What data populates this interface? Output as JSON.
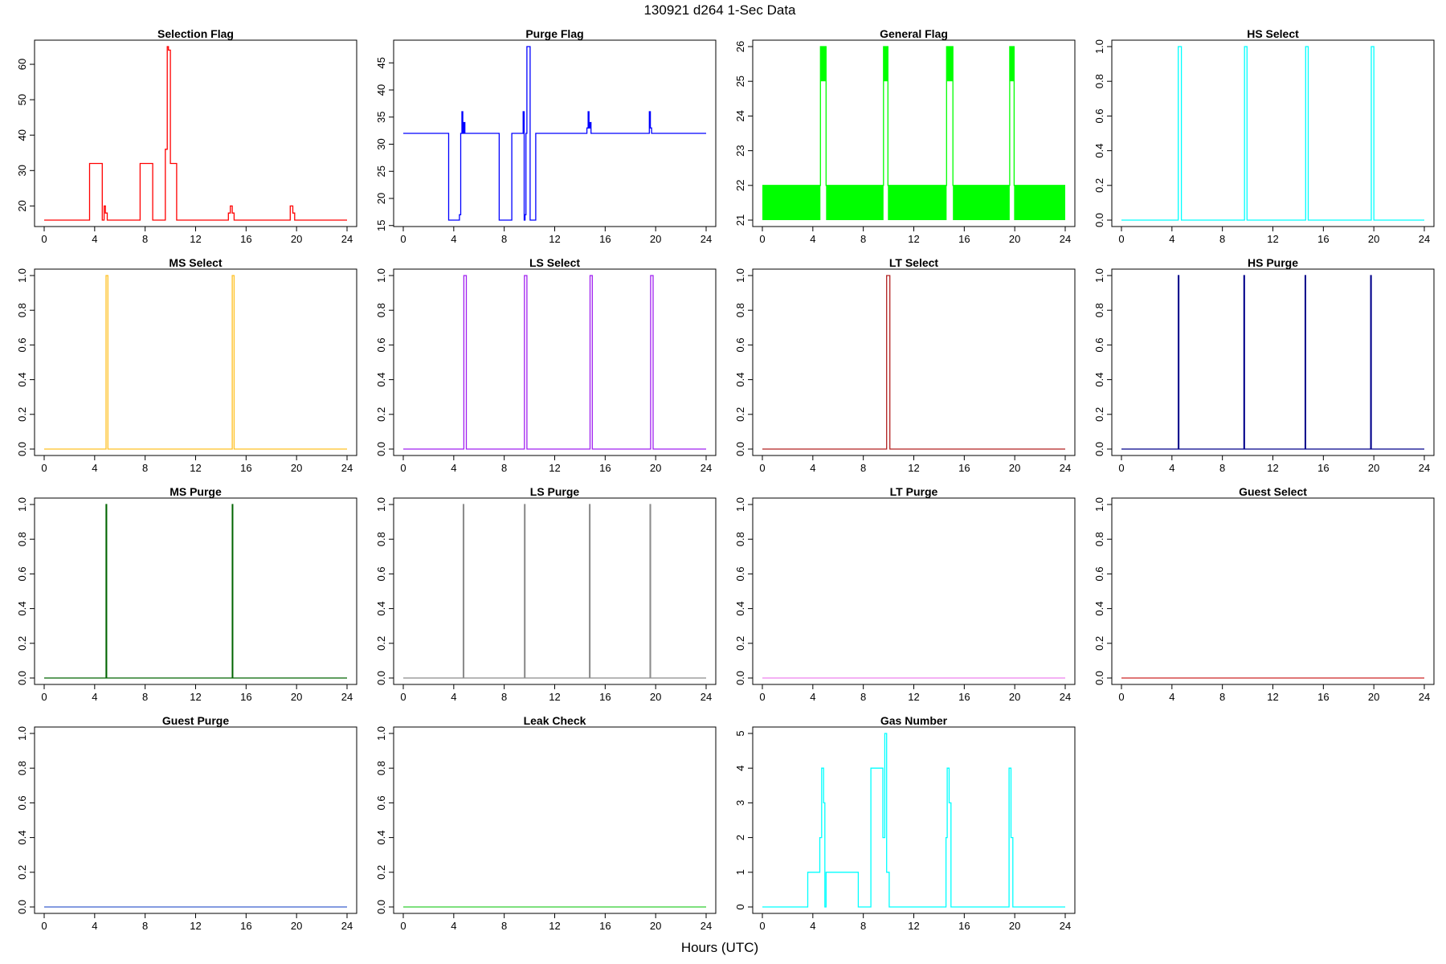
{
  "figure": {
    "title": "130921   d264   1-Sec Data",
    "xlabel": "Hours (UTC)"
  },
  "chart_data": [
    {
      "type": "line",
      "title": "Selection Flag",
      "color": "#ff0000",
      "xlim": [
        0,
        24
      ],
      "ylim": [
        16,
        65
      ],
      "xticks": [
        0,
        4,
        8,
        12,
        16,
        20,
        24
      ],
      "yticks": [
        20,
        30,
        40,
        50,
        60
      ],
      "ytick_labels": [
        "20",
        "30",
        "40",
        "50",
        "60"
      ],
      "x": [
        0,
        3.6,
        3.6,
        4.6,
        4.6,
        4.75,
        4.75,
        4.85,
        4.85,
        5.0,
        5.0,
        7.6,
        7.6,
        8.6,
        8.6,
        9.6,
        9.6,
        9.75,
        9.75,
        9.85,
        9.85,
        10.0,
        10.0,
        10.5,
        10.5,
        14.6,
        14.6,
        14.75,
        14.75,
        14.9,
        14.9,
        15.05,
        15.05,
        19.5,
        19.5,
        19.7,
        19.7,
        19.85,
        19.85,
        24
      ],
      "y": [
        16,
        16,
        32,
        32,
        16,
        16,
        20,
        20,
        18,
        18,
        16,
        16,
        32,
        32,
        16,
        16,
        36,
        36,
        65,
        65,
        64,
        64,
        32,
        32,
        16,
        16,
        18,
        18,
        20,
        20,
        18,
        18,
        16,
        16,
        20,
        20,
        18,
        18,
        16,
        16
      ]
    },
    {
      "type": "line",
      "title": "Purge Flag",
      "color": "#0000ff",
      "xlim": [
        0,
        24
      ],
      "ylim": [
        16,
        48
      ],
      "xticks": [
        0,
        4,
        8,
        12,
        16,
        20,
        24
      ],
      "yticks": [
        15,
        20,
        25,
        30,
        35,
        40,
        45
      ],
      "ytick_labels": [
        "15",
        "20",
        "25",
        "30",
        "35",
        "40",
        "45"
      ],
      "x": [
        0,
        3.6,
        3.6,
        4.45,
        4.45,
        4.55,
        4.55,
        4.65,
        4.65,
        4.72,
        4.72,
        4.8,
        4.8,
        4.88,
        4.88,
        7.6,
        7.6,
        8.6,
        8.6,
        9.5,
        9.5,
        9.58,
        9.58,
        9.65,
        9.65,
        9.72,
        9.72,
        9.8,
        9.8,
        10.05,
        10.05,
        10.5,
        10.5,
        14.55,
        14.55,
        14.65,
        14.65,
        14.72,
        14.72,
        14.8,
        14.8,
        14.88,
        14.88,
        19.5,
        19.5,
        19.58,
        19.58,
        19.68,
        19.68,
        24
      ],
      "y": [
        32,
        32,
        16,
        16,
        17,
        17,
        32,
        32,
        36,
        36,
        32,
        32,
        34,
        34,
        32,
        32,
        16,
        16,
        32,
        32,
        36,
        36,
        16,
        16,
        17,
        17,
        32,
        32,
        48,
        48,
        16,
        16,
        32,
        32,
        33,
        33,
        36,
        36,
        33,
        33,
        34,
        34,
        32,
        32,
        36,
        36,
        33,
        33,
        32,
        32
      ]
    },
    {
      "type": "line",
      "title": "General Flag",
      "color": "#00ff00",
      "xlim": [
        0,
        24
      ],
      "ylim": [
        21,
        26
      ],
      "xticks": [
        0,
        4,
        8,
        12,
        16,
        20,
        24
      ],
      "yticks": [
        21,
        22,
        23,
        24,
        25,
        26
      ],
      "ytick_labels": [
        "21",
        "22",
        "23",
        "24",
        "25",
        "26"
      ],
      "x": [
        0,
        4.6,
        4.6,
        5.05,
        5.05,
        9.6,
        9.6,
        9.95,
        9.95,
        14.6,
        14.6,
        15.1,
        15.1,
        19.6,
        19.6,
        19.95,
        19.95,
        24
      ],
      "y": [
        22,
        22,
        26,
        26,
        22,
        22,
        26,
        26,
        22,
        22,
        26,
        26,
        22,
        22,
        26,
        26,
        22,
        22
      ],
      "note": "rapid 21-22 oscillation rendered as solid fill; spikes oscillate 25-26"
    },
    {
      "type": "line",
      "title": "HS Select",
      "color": "#00ffff",
      "xlim": [
        0,
        24
      ],
      "ylim": [
        0,
        1
      ],
      "xticks": [
        0,
        4,
        8,
        12,
        16,
        20,
        24
      ],
      "yticks": [
        0.0,
        0.2,
        0.4,
        0.6,
        0.8,
        1.0
      ],
      "ytick_labels": [
        "0.0",
        "0.2",
        "0.4",
        "0.6",
        "0.8",
        "1.0"
      ],
      "x": [
        0,
        4.5,
        4.5,
        4.75,
        4.75,
        9.75,
        9.75,
        9.95,
        9.95,
        14.6,
        14.6,
        14.8,
        14.8,
        19.8,
        19.8,
        20.0,
        20.0,
        24
      ],
      "y": [
        0,
        0,
        1,
        1,
        0,
        0,
        1,
        1,
        0,
        0,
        1,
        1,
        0,
        0,
        1,
        1,
        0,
        0
      ]
    },
    {
      "type": "line",
      "title": "MS Select",
      "color": "#ffc125",
      "xlim": [
        0,
        24
      ],
      "ylim": [
        0,
        1
      ],
      "xticks": [
        0,
        4,
        8,
        12,
        16,
        20,
        24
      ],
      "yticks": [
        0.0,
        0.2,
        0.4,
        0.6,
        0.8,
        1.0
      ],
      "ytick_labels": [
        "0.0",
        "0.2",
        "0.4",
        "0.6",
        "0.8",
        "1.0"
      ],
      "x": [
        0,
        4.9,
        4.9,
        5.05,
        5.05,
        14.9,
        14.9,
        15.05,
        15.05,
        24
      ],
      "y": [
        0,
        0,
        1,
        1,
        0,
        0,
        1,
        1,
        0,
        0
      ]
    },
    {
      "type": "line",
      "title": "LS Select",
      "color": "#a020f0",
      "xlim": [
        0,
        24
      ],
      "ylim": [
        0,
        1
      ],
      "xticks": [
        0,
        4,
        8,
        12,
        16,
        20,
        24
      ],
      "yticks": [
        0.0,
        0.2,
        0.4,
        0.6,
        0.8,
        1.0
      ],
      "ytick_labels": [
        "0.0",
        "0.2",
        "0.4",
        "0.6",
        "0.8",
        "1.0"
      ],
      "x": [
        0,
        4.8,
        4.8,
        5.0,
        5.0,
        9.6,
        9.6,
        9.8,
        9.8,
        14.8,
        14.8,
        14.98,
        14.98,
        19.6,
        19.6,
        19.8,
        19.8,
        24
      ],
      "y": [
        0,
        0,
        1,
        1,
        0,
        0,
        1,
        1,
        0,
        0,
        1,
        1,
        0,
        0,
        1,
        1,
        0,
        0
      ]
    },
    {
      "type": "line",
      "title": "LT Select",
      "color": "#b22222",
      "xlim": [
        0,
        24
      ],
      "ylim": [
        0,
        1
      ],
      "xticks": [
        0,
        4,
        8,
        12,
        16,
        20,
        24
      ],
      "yticks": [
        0.0,
        0.2,
        0.4,
        0.6,
        0.8,
        1.0
      ],
      "ytick_labels": [
        "0.0",
        "0.2",
        "0.4",
        "0.6",
        "0.8",
        "1.0"
      ],
      "x": [
        0,
        9.85,
        9.85,
        10.1,
        10.1,
        24
      ],
      "y": [
        0,
        0,
        1,
        1,
        0,
        0
      ]
    },
    {
      "type": "line",
      "title": "HS Purge",
      "color": "#00008b",
      "xlim": [
        0,
        24
      ],
      "ylim": [
        0,
        1
      ],
      "xticks": [
        0,
        4,
        8,
        12,
        16,
        20,
        24
      ],
      "yticks": [
        0.0,
        0.2,
        0.4,
        0.6,
        0.8,
        1.0
      ],
      "ytick_labels": [
        "0.0",
        "0.2",
        "0.4",
        "0.6",
        "0.8",
        "1.0"
      ],
      "x": [
        0,
        4.5,
        4.5,
        4.55,
        4.55,
        9.7,
        9.7,
        9.75,
        9.75,
        14.55,
        14.55,
        14.6,
        14.6,
        19.75,
        19.75,
        19.8,
        19.8,
        24
      ],
      "y": [
        0,
        0,
        1,
        1,
        0,
        0,
        1,
        1,
        0,
        0,
        1,
        1,
        0,
        0,
        1,
        1,
        0,
        0
      ]
    },
    {
      "type": "line",
      "title": "MS Purge",
      "color": "#006400",
      "xlim": [
        0,
        24
      ],
      "ylim": [
        0,
        1
      ],
      "xticks": [
        0,
        4,
        8,
        12,
        16,
        20,
        24
      ],
      "yticks": [
        0.0,
        0.2,
        0.4,
        0.6,
        0.8,
        1.0
      ],
      "ytick_labels": [
        "0.0",
        "0.2",
        "0.4",
        "0.6",
        "0.8",
        "1.0"
      ],
      "x": [
        0,
        4.9,
        4.9,
        4.95,
        4.95,
        14.9,
        14.9,
        14.95,
        14.95,
        24
      ],
      "y": [
        0,
        0,
        1,
        1,
        0,
        0,
        1,
        1,
        0,
        0
      ]
    },
    {
      "type": "line",
      "title": "LS Purge",
      "color": "#8c8c8c",
      "xlim": [
        0,
        24
      ],
      "ylim": [
        0,
        1
      ],
      "xticks": [
        0,
        4,
        8,
        12,
        16,
        20,
        24
      ],
      "yticks": [
        0.0,
        0.2,
        0.4,
        0.6,
        0.8,
        1.0
      ],
      "ytick_labels": [
        "0.0",
        "0.2",
        "0.4",
        "0.6",
        "0.8",
        "1.0"
      ],
      "x": [
        0,
        4.75,
        4.75,
        4.8,
        4.8,
        9.6,
        9.6,
        9.65,
        9.65,
        14.75,
        14.75,
        14.8,
        14.8,
        19.55,
        19.55,
        19.6,
        19.6,
        24
      ],
      "y": [
        0,
        0,
        1,
        1,
        0,
        0,
        1,
        1,
        0,
        0,
        1,
        1,
        0,
        0,
        1,
        1,
        0,
        0
      ]
    },
    {
      "type": "line",
      "title": "LT Purge",
      "color": "#ee82ee",
      "xlim": [
        0,
        24
      ],
      "ylim": [
        0,
        1
      ],
      "xticks": [
        0,
        4,
        8,
        12,
        16,
        20,
        24
      ],
      "yticks": [
        0.0,
        0.2,
        0.4,
        0.6,
        0.8,
        1.0
      ],
      "ytick_labels": [
        "0.0",
        "0.2",
        "0.4",
        "0.6",
        "0.8",
        "1.0"
      ],
      "x": [
        0,
        24
      ],
      "y": [
        0,
        0
      ]
    },
    {
      "type": "line",
      "title": "Guest Select",
      "color": "#cd2626",
      "xlim": [
        0,
        24
      ],
      "ylim": [
        0,
        1
      ],
      "xticks": [
        0,
        4,
        8,
        12,
        16,
        20,
        24
      ],
      "yticks": [
        0.0,
        0.2,
        0.4,
        0.6,
        0.8,
        1.0
      ],
      "ytick_labels": [
        "0.0",
        "0.2",
        "0.4",
        "0.6",
        "0.8",
        "1.0"
      ],
      "x": [
        0,
        24
      ],
      "y": [
        0,
        0
      ]
    },
    {
      "type": "line",
      "title": "Guest Purge",
      "color": "#3a5fcd",
      "xlim": [
        0,
        24
      ],
      "ylim": [
        0,
        1
      ],
      "xticks": [
        0,
        4,
        8,
        12,
        16,
        20,
        24
      ],
      "yticks": [
        0.0,
        0.2,
        0.4,
        0.6,
        0.8,
        1.0
      ],
      "ytick_labels": [
        "0.0",
        "0.2",
        "0.4",
        "0.6",
        "0.8",
        "1.0"
      ],
      "x": [
        0,
        24
      ],
      "y": [
        0,
        0
      ]
    },
    {
      "type": "line",
      "title": "Leak Check",
      "color": "#32cd32",
      "xlim": [
        0,
        24
      ],
      "ylim": [
        0,
        1
      ],
      "xticks": [
        0,
        4,
        8,
        12,
        16,
        20,
        24
      ],
      "yticks": [
        0.0,
        0.2,
        0.4,
        0.6,
        0.8,
        1.0
      ],
      "ytick_labels": [
        "0.0",
        "0.2",
        "0.4",
        "0.6",
        "0.8",
        "1.0"
      ],
      "x": [
        0,
        24
      ],
      "y": [
        0,
        0
      ]
    },
    {
      "type": "line",
      "title": "Gas Number",
      "color": "#00ffff",
      "xlim": [
        0,
        24
      ],
      "ylim": [
        0,
        5
      ],
      "xticks": [
        0,
        4,
        8,
        12,
        16,
        20,
        24
      ],
      "yticks": [
        0,
        1,
        2,
        3,
        4,
        5
      ],
      "ytick_labels": [
        "0",
        "1",
        "2",
        "3",
        "4",
        "5"
      ],
      "x": [
        0,
        3.6,
        3.6,
        4.55,
        4.55,
        4.7,
        4.7,
        4.85,
        4.85,
        4.95,
        4.95,
        5.05,
        5.05,
        7.6,
        7.6,
        8.6,
        8.6,
        9.55,
        9.55,
        9.7,
        9.7,
        9.85,
        9.85,
        10.05,
        10.05,
        10.5,
        10.5,
        14.55,
        14.55,
        14.65,
        14.65,
        14.8,
        14.8,
        14.95,
        14.95,
        15.05,
        15.05,
        19.55,
        19.55,
        19.7,
        19.7,
        19.85,
        19.85,
        24
      ],
      "y": [
        0,
        0,
        1,
        1,
        2,
        2,
        4,
        4,
        3,
        3,
        0,
        0,
        1,
        1,
        0,
        0,
        4,
        4,
        2,
        2,
        5,
        5,
        1,
        1,
        0,
        0,
        0,
        0,
        2,
        2,
        4,
        4,
        3,
        3,
        0,
        0,
        0,
        0,
        4,
        4,
        2,
        2,
        0,
        0
      ]
    }
  ]
}
